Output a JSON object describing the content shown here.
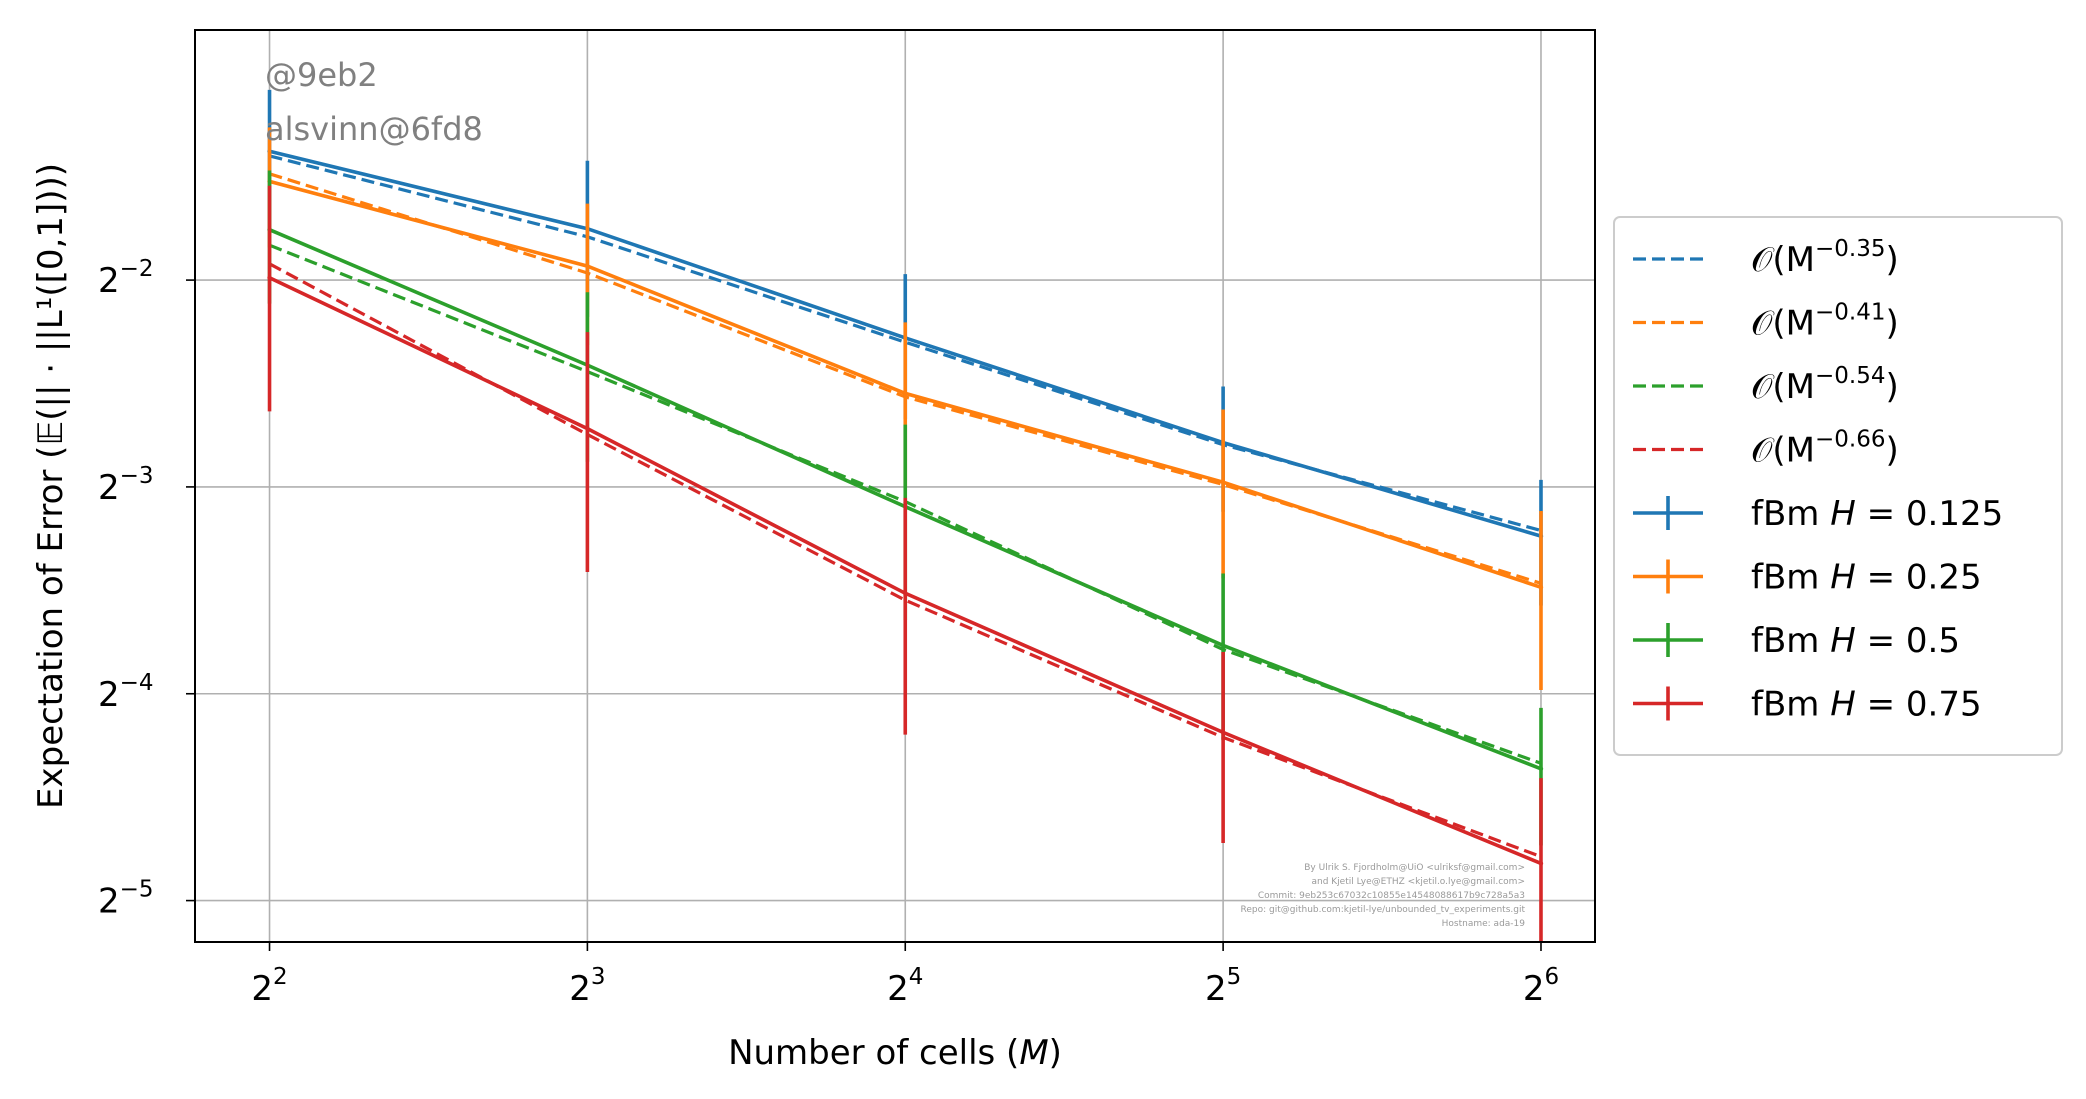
{
  "chart_data": {
    "type": "line",
    "xscale": "log2",
    "yscale": "log2",
    "x": [
      4,
      8,
      16,
      32,
      64
    ],
    "x_tick_labels": [
      {
        "base": "2",
        "exp": "2"
      },
      {
        "base": "2",
        "exp": "3"
      },
      {
        "base": "2",
        "exp": "4"
      },
      {
        "base": "2",
        "exp": "5"
      },
      {
        "base": "2",
        "exp": "6"
      }
    ],
    "y_ticks": [
      0.03125,
      0.0625,
      0.125,
      0.25
    ],
    "y_tick_labels": [
      {
        "base": "2",
        "exp": "−5"
      },
      {
        "base": "2",
        "exp": "−4"
      },
      {
        "base": "2",
        "exp": "−3"
      },
      {
        "base": "2",
        "exp": "−2"
      }
    ],
    "xlim": [
      3.4,
      72
    ],
    "ylim": [
      0.0272,
      0.578
    ],
    "xlabel": {
      "text": "Number of cells (",
      "italic": "M",
      "after": ")"
    },
    "ylabel": "Expectation of Error (𝔼(|| · ||L¹([0,1])))",
    "grid": true,
    "legend_placement": "outside-right",
    "series": [
      {
        "name": "fBm H = 0.125",
        "legend_text": "fBm ",
        "legend_italic": "H",
        "legend_value": " = 0.125",
        "color": "#1f77b4",
        "values": [
          0.385,
          0.297,
          0.206,
          0.145,
          0.106
        ],
        "err": [
          0.088,
          0.076,
          0.049,
          0.03,
          0.022
        ]
      },
      {
        "name": "fBm H = 0.25",
        "legend_text": "fBm ",
        "legend_italic": "H",
        "legend_value": " = 0.25",
        "color": "#ff7f0e",
        "values": [
          0.348,
          0.262,
          0.171,
          0.127,
          0.0893
        ],
        "err": [
          0.069,
          0.061,
          0.046,
          0.035,
          0.026
        ]
      },
      {
        "name": "fBm H = 0.5",
        "legend_text": "fBm ",
        "legend_italic": "H",
        "legend_value": " = 0.5",
        "color": "#2ca02c",
        "values": [
          0.296,
          0.188,
          0.117,
          0.0735,
          0.0486
        ],
        "err": [
          0.065,
          0.052,
          0.037,
          0.02,
          0.011
        ]
      },
      {
        "name": "fBm H = 0.75",
        "legend_text": "fBm ",
        "legend_italic": "H",
        "legend_value": " = 0.75",
        "color": "#d62728",
        "values": [
          0.252,
          0.152,
          0.0875,
          0.0549,
          0.0354
        ],
        "err": [
          0.091,
          0.058,
          0.033,
          0.017,
          0.0117
        ]
      }
    ],
    "fits": [
      {
        "name": "O(M^-0.35)",
        "legend_main": "𝒪(M",
        "legend_exp": "−0.35",
        "legend_close": ")",
        "color": "#1f77b4",
        "values": [
          0.379,
          0.289,
          0.203,
          0.144,
          0.108
        ]
      },
      {
        "name": "O(M^-0.41)",
        "legend_main": "𝒪(M",
        "legend_exp": "−0.41",
        "legend_close": ")",
        "color": "#ff7f0e",
        "values": [
          0.357,
          0.256,
          0.169,
          0.126,
          0.0905
        ]
      },
      {
        "name": "O(M^-0.54)",
        "legend_main": "𝒪(M",
        "legend_exp": "−0.54",
        "legend_close": ")",
        "color": "#2ca02c",
        "values": [
          0.281,
          0.184,
          0.119,
          0.0725,
          0.0495
        ]
      },
      {
        "name": "O(M^-0.66)",
        "legend_main": "𝒪(M",
        "legend_exp": "−0.66",
        "legend_close": ")",
        "color": "#d62728",
        "values": [
          0.264,
          0.149,
          0.0855,
          0.054,
          0.0362
        ]
      }
    ],
    "annotations": {
      "watermark": [
        "@9eb2",
        "alsvinn@6fd8"
      ],
      "credits": [
        "By Ulrik S. Fjordholm@UiO <ulriksf@gmail.com>",
        "and Kjetil Lye@ETHZ <kjetil.o.lye@gmail.com>",
        "Commit: 9eb253c67032c10855e14548088617b9c728a5a3",
        "Repo: git@github.com:kjetil-lye/unbounded_tv_experiments.git",
        "Hostname: ada-19"
      ]
    }
  }
}
